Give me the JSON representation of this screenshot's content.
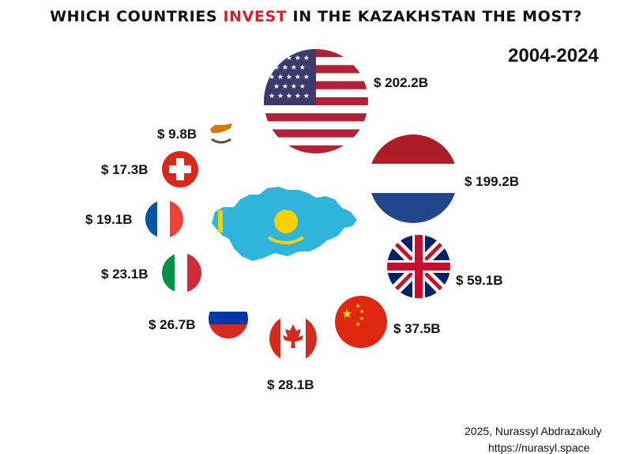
{
  "title": {
    "prefix": "WHICH COUNTRIES ",
    "highlight": "INVEST",
    "suffix": " IN THE KAZAKHSTAN THE MOST?",
    "highlight_color": "#d4202a"
  },
  "period": "2004-2024",
  "credit": {
    "author": "2025, Nurassyl Abdrazakuly",
    "url": "https://nurasyl.space"
  },
  "chart_data": {
    "type": "bubble",
    "title": "WHICH COUNTRIES INVEST IN THE KAZAKHSTAN THE MOST?",
    "subtitle": "2004-2024",
    "center_icon": "kazakhstan-map-flag",
    "unit": "$ B",
    "items": [
      {
        "flag": "usa-flag",
        "label": "$ 202.2B",
        "value": 202.2
      },
      {
        "flag": "netherlands-flag",
        "label": "$ 199.2B",
        "value": 199.2
      },
      {
        "flag": "uk-flag",
        "label": "$ 59.1B",
        "value": 59.1
      },
      {
        "flag": "china-flag",
        "label": "$ 37.5B",
        "value": 37.5
      },
      {
        "flag": "canada-flag",
        "label": "$ 28.1B",
        "value": 28.1
      },
      {
        "flag": "russia-flag",
        "label": "$ 26.7B",
        "value": 26.7
      },
      {
        "flag": "italy-flag",
        "label": "$ 23.1B",
        "value": 23.1
      },
      {
        "flag": "france-flag",
        "label": "$ 19.1B",
        "value": 19.1
      },
      {
        "flag": "switzerland-flag",
        "label": "$ 17.3B",
        "value": 17.3
      },
      {
        "flag": "cyprus-flag",
        "label": "$ 9.8B",
        "value": 9.8
      }
    ]
  }
}
